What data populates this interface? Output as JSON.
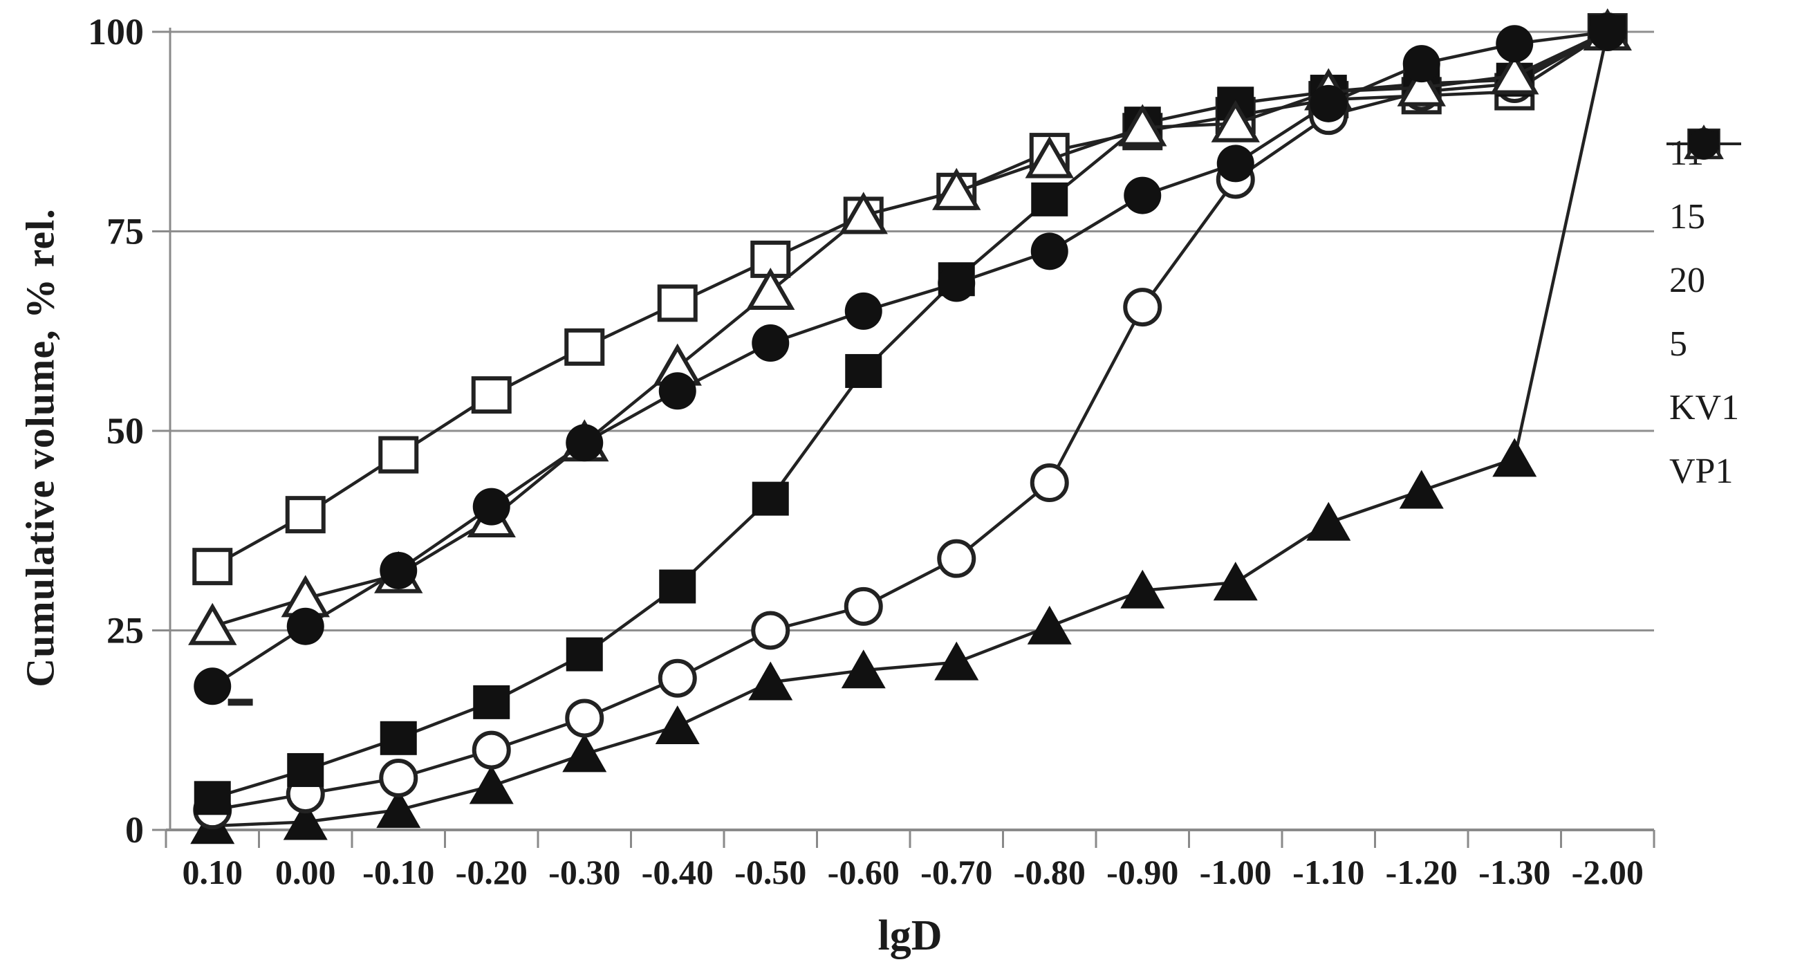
{
  "chart_data": {
    "type": "line",
    "title": "",
    "xlabel": "lgD",
    "ylabel": "Cumulative volume, % rel.",
    "categories": [
      "0.10",
      "0.00",
      "-0.10",
      "-0.20",
      "-0.30",
      "-0.40",
      "-0.50",
      "-0.60",
      "-0.70",
      "-0.80",
      "-0.90",
      "-1.00",
      "-1.10",
      "-1.20",
      "-1.30",
      "-2.00"
    ],
    "yticks": [
      0,
      25,
      50,
      75,
      100
    ],
    "ylim": [
      0,
      100
    ],
    "grid": "horizontal",
    "legend_position": "right",
    "series": [
      {
        "name": "11",
        "marker": "open-square",
        "values": [
          33,
          39.5,
          47,
          54.5,
          60.5,
          66,
          71.5,
          77,
          80,
          85,
          87.5,
          89.5,
          91.5,
          92,
          92.5,
          100
        ]
      },
      {
        "name": "15",
        "marker": "filled-triangle",
        "values": [
          0.5,
          1,
          2.5,
          5.5,
          9.5,
          13,
          18.5,
          20,
          21,
          25.5,
          30,
          31,
          38.5,
          42.5,
          46.5,
          100
        ]
      },
      {
        "name": "20",
        "marker": "open-circle",
        "values": [
          2.5,
          4.5,
          6.5,
          10,
          14,
          19,
          25,
          28,
          34,
          43.5,
          65.5,
          81.5,
          89.5,
          92.5,
          93.5,
          100
        ]
      },
      {
        "name": "5",
        "marker": "filled-square",
        "values": [
          4,
          7.5,
          11.5,
          16,
          22,
          30.5,
          41.5,
          57.5,
          69,
          79,
          88.5,
          91,
          92.5,
          93.5,
          94,
          100
        ]
      },
      {
        "name": "KV1",
        "marker": "open-triangle",
        "values": [
          25.5,
          29,
          32,
          39,
          48.5,
          58,
          67.5,
          77,
          80,
          84,
          88,
          88.5,
          92.5,
          93,
          94.5,
          100
        ]
      },
      {
        "name": "VP1",
        "marker": "filled-circle",
        "values": [
          18,
          25.5,
          32.5,
          40.5,
          48.5,
          55,
          61,
          65,
          68.5,
          72.5,
          79.5,
          83.5,
          91,
          96,
          98.5,
          100
        ]
      }
    ],
    "annotations": [
      {
        "type": "stray-dash",
        "between_categories": [
          "0.10",
          "0.00"
        ],
        "value": 16
      }
    ]
  },
  "colors": {
    "series": "#222222",
    "marker_fill": "#111111",
    "marker_open_fill": "#ffffff",
    "gridline": "#8f8f8f",
    "axis": "#8a8a8a",
    "text": "#1b1b1b",
    "background": "#ffffff"
  }
}
